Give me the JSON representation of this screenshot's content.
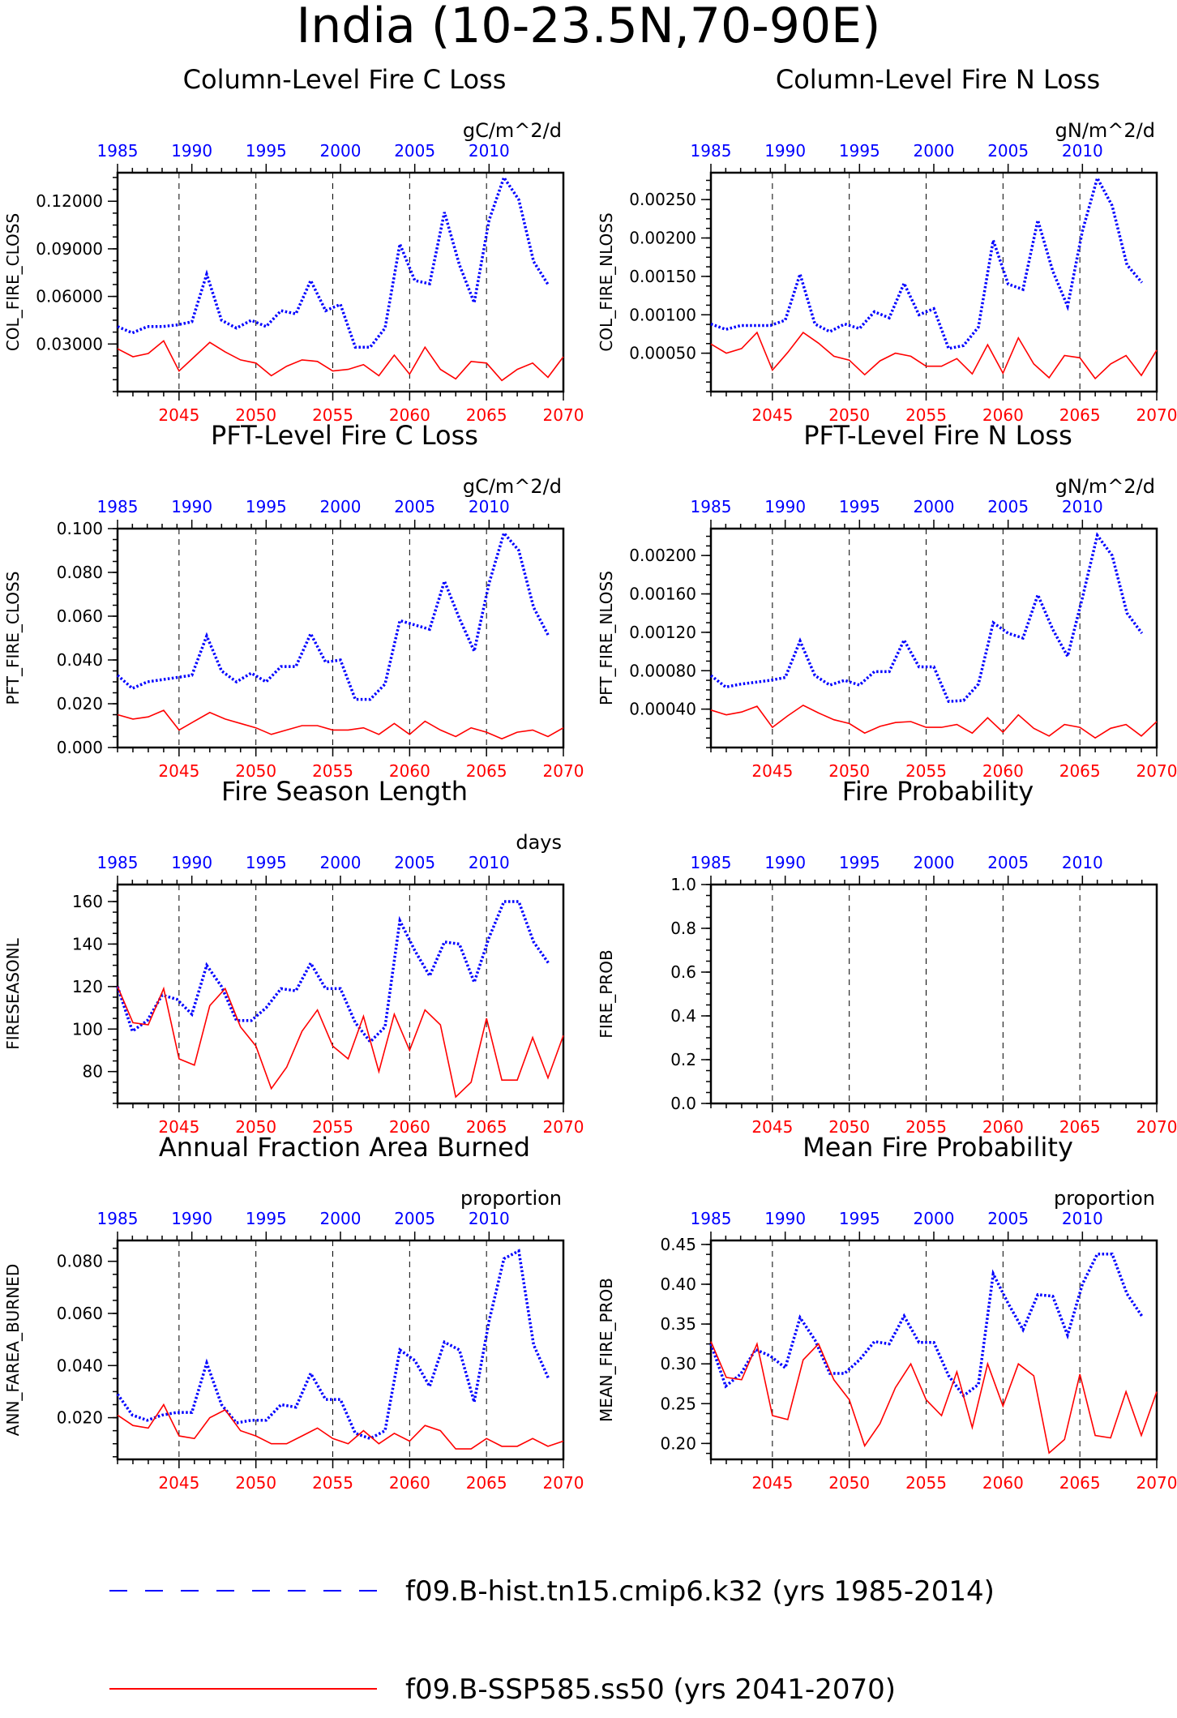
{
  "title": "India (10-23.5N,70-90E)",
  "colors": {
    "hist": "#0000ff",
    "ssp": "#ff0000",
    "axis": "#000000"
  },
  "top_axis": {
    "label_years": [
      1985,
      1990,
      1995,
      2000,
      2005,
      2010
    ],
    "range": [
      1985,
      2014
    ]
  },
  "bottom_axis": {
    "label_years": [
      2045,
      2050,
      2055,
      2060,
      2065,
      2070
    ],
    "range": [
      2041,
      2070
    ]
  },
  "legend": [
    {
      "label": "f09.B-hist.tn15.cmip6.k32 (yrs 1985-2014)",
      "style": "dashed",
      "color": "#0000ff"
    },
    {
      "label": "f09.B-SSP585.ss50 (yrs 2041-2070)",
      "style": "solid",
      "color": "#ff0000"
    }
  ],
  "chart_data": [
    {
      "type": "line",
      "title": "Column-Level Fire C Loss",
      "units": "gC/m^2/d",
      "ylabel": "COL_FIRE_CLOSS",
      "ylim": [
        0,
        0.138
      ],
      "yticks": [
        0.03,
        0.06,
        0.09,
        0.12
      ],
      "ytick_labels": [
        "0.03000",
        "0.06000",
        "0.09000",
        "0.12000"
      ],
      "series": [
        {
          "name": "f09.B-hist.tn15.cmip6.k32 (yrs 1985-2014)",
          "x_start": 1985,
          "values": [
            0.041,
            0.037,
            0.041,
            0.041,
            0.042,
            0.044,
            0.074,
            0.045,
            0.04,
            0.045,
            0.041,
            0.051,
            0.049,
            0.07,
            0.051,
            0.055,
            0.028,
            0.028,
            0.04,
            0.093,
            0.07,
            0.068,
            0.113,
            0.08,
            0.056,
            0.108,
            0.135,
            0.121,
            0.082,
            0.067
          ]
        },
        {
          "name": "f09.B-SSP585.ss50 (yrs 2041-2070)",
          "x_start": 2041,
          "values": [
            0.027,
            0.022,
            0.024,
            0.032,
            0.013,
            0.022,
            0.031,
            0.025,
            0.02,
            0.018,
            0.01,
            0.016,
            0.02,
            0.019,
            0.013,
            0.014,
            0.017,
            0.01,
            0.023,
            0.011,
            0.028,
            0.014,
            0.008,
            0.019,
            0.018,
            0.007,
            0.014,
            0.018,
            0.009,
            0.022
          ]
        }
      ]
    },
    {
      "type": "line",
      "title": "Column-Level Fire N Loss",
      "units": "gN/m^2/d",
      "ylabel": "COL_FIRE_NLOSS",
      "ylim": [
        0,
        0.00285
      ],
      "yticks": [
        0.0005,
        0.001,
        0.0015,
        0.002,
        0.0025
      ],
      "ytick_labels": [
        "0.00050",
        "0.00100",
        "0.00150",
        "0.00200",
        "0.00250"
      ],
      "series": [
        {
          "name": "f09.B-hist.tn15.cmip6.k32 (yrs 1985-2014)",
          "x_start": 1985,
          "values": [
            0.00088,
            0.00081,
            0.00086,
            0.00086,
            0.00086,
            0.00093,
            0.00153,
            0.00088,
            0.00078,
            0.00088,
            0.00082,
            0.00104,
            0.00096,
            0.00141,
            0.001,
            0.00108,
            0.00056,
            0.0006,
            0.00084,
            0.00197,
            0.0014,
            0.00133,
            0.00223,
            0.00157,
            0.00111,
            0.00209,
            0.00278,
            0.00242,
            0.00165,
            0.00142
          ]
        },
        {
          "name": "f09.B-SSP585.ss50 (yrs 2041-2070)",
          "x_start": 2041,
          "values": [
            0.00062,
            0.0005,
            0.00056,
            0.00077,
            0.00028,
            0.00051,
            0.00077,
            0.00063,
            0.00046,
            0.00041,
            0.00022,
            0.0004,
            0.0005,
            0.00046,
            0.00033,
            0.00033,
            0.00043,
            0.00023,
            0.00061,
            0.00024,
            0.0007,
            0.00036,
            0.00018,
            0.00047,
            0.00044,
            0.00017,
            0.00036,
            0.00047,
            0.00021,
            0.00054
          ]
        }
      ]
    },
    {
      "type": "line",
      "title": "PFT-Level Fire C Loss",
      "units": "gC/m^2/d",
      "ylabel": "PFT_FIRE_CLOSS",
      "ylim": [
        0,
        0.1
      ],
      "yticks": [
        0,
        0.02,
        0.04,
        0.06,
        0.08,
        0.1
      ],
      "ytick_labels": [
        "0.000",
        "0.020",
        "0.040",
        "0.060",
        "0.080",
        "0.100"
      ],
      "series": [
        {
          "name": "f09.B-hist.tn15.cmip6.k32 (yrs 1985-2014)",
          "x_start": 1985,
          "values": [
            0.033,
            0.027,
            0.03,
            0.031,
            0.032,
            0.033,
            0.051,
            0.035,
            0.03,
            0.034,
            0.03,
            0.037,
            0.037,
            0.052,
            0.039,
            0.04,
            0.022,
            0.022,
            0.029,
            0.058,
            0.056,
            0.054,
            0.076,
            0.059,
            0.044,
            0.075,
            0.098,
            0.09,
            0.064,
            0.051
          ]
        },
        {
          "name": "f09.B-SSP585.ss50 (yrs 2041-2070)",
          "x_start": 2041,
          "values": [
            0.015,
            0.013,
            0.014,
            0.017,
            0.008,
            0.012,
            0.016,
            0.013,
            0.011,
            0.009,
            0.006,
            0.008,
            0.01,
            0.01,
            0.008,
            0.008,
            0.009,
            0.006,
            0.011,
            0.006,
            0.012,
            0.008,
            0.005,
            0.009,
            0.007,
            0.004,
            0.007,
            0.008,
            0.005,
            0.009
          ]
        }
      ]
    },
    {
      "type": "line",
      "title": "PFT-Level Fire N Loss",
      "units": "gN/m^2/d",
      "ylabel": "PFT_FIRE_NLOSS",
      "ylim": [
        0,
        0.00228
      ],
      "yticks": [
        0.0004,
        0.0008,
        0.0012,
        0.0016,
        0.002
      ],
      "ytick_labels": [
        "0.00040",
        "0.00080",
        "0.00120",
        "0.00160",
        "0.00200"
      ],
      "series": [
        {
          "name": "f09.B-hist.tn15.cmip6.k32 (yrs 1985-2014)",
          "x_start": 1985,
          "values": [
            0.00075,
            0.00063,
            0.00066,
            0.00068,
            0.0007,
            0.00073,
            0.00111,
            0.00075,
            0.00065,
            0.0007,
            0.00065,
            0.00079,
            0.00079,
            0.00112,
            0.00084,
            0.00084,
            0.00048,
            0.00049,
            0.00066,
            0.0013,
            0.00119,
            0.00114,
            0.00159,
            0.00123,
            0.00095,
            0.00156,
            0.00221,
            0.002,
            0.0014,
            0.00119
          ]
        },
        {
          "name": "f09.B-SSP585.ss50 (yrs 2041-2070)",
          "x_start": 2041,
          "values": [
            0.00039,
            0.00034,
            0.00037,
            0.00043,
            0.00021,
            0.00033,
            0.00044,
            0.00036,
            0.00029,
            0.00025,
            0.00015,
            0.00022,
            0.00026,
            0.00027,
            0.00021,
            0.00021,
            0.00024,
            0.00015,
            0.00031,
            0.00016,
            0.00034,
            0.0002,
            0.00012,
            0.00024,
            0.00021,
            0.0001,
            0.0002,
            0.00024,
            0.00012,
            0.00027
          ]
        }
      ]
    },
    {
      "type": "line",
      "title": "Fire Season Length",
      "units": "days",
      "ylabel": "FIRESEASONL",
      "ylim": [
        65,
        168
      ],
      "yticks": [
        80,
        100,
        120,
        140,
        160
      ],
      "ytick_labels": [
        "80",
        "100",
        "120",
        "140",
        "160"
      ],
      "series": [
        {
          "name": "f09.B-hist.tn15.cmip6.k32 (yrs 1985-2014)",
          "x_start": 1985,
          "values": [
            120,
            99,
            104,
            116,
            114,
            107,
            130,
            120,
            104,
            104,
            110,
            119,
            118,
            131,
            119,
            119,
            103,
            94,
            101,
            151,
            137,
            125,
            141,
            140,
            122,
            143,
            160,
            160,
            141,
            131
          ]
        },
        {
          "name": "f09.B-SSP585.ss50 (yrs 2041-2070)",
          "x_start": 2041,
          "values": [
            120,
            103,
            102,
            119,
            86,
            83,
            111,
            119,
            101,
            92,
            72,
            82,
            99,
            109,
            92,
            86,
            106,
            80,
            107,
            90,
            109,
            102,
            68,
            75,
            105,
            76,
            76,
            96,
            77,
            97
          ]
        }
      ]
    },
    {
      "type": "line",
      "title": "Fire Probability",
      "units": "",
      "ylabel": "FIRE_PROB",
      "ylim": [
        0,
        1
      ],
      "yticks": [
        0,
        0.2,
        0.4,
        0.6,
        0.8,
        1
      ],
      "ytick_labels": [
        "0.0",
        "0.2",
        "0.4",
        "0.6",
        "0.8",
        "1.0"
      ],
      "series": []
    },
    {
      "type": "line",
      "title": "Annual Fraction Area Burned",
      "units": "proportion",
      "ylabel": "ANN_FAREA_BURNED",
      "ylim": [
        0.004,
        0.088
      ],
      "yticks": [
        0.02,
        0.04,
        0.06,
        0.08
      ],
      "ytick_labels": [
        "0.020",
        "0.040",
        "0.060",
        "0.080"
      ],
      "series": [
        {
          "name": "f09.B-hist.tn15.cmip6.k32 (yrs 1985-2014)",
          "x_start": 1985,
          "values": [
            0.029,
            0.021,
            0.019,
            0.021,
            0.022,
            0.022,
            0.041,
            0.025,
            0.018,
            0.019,
            0.019,
            0.025,
            0.024,
            0.037,
            0.027,
            0.027,
            0.014,
            0.012,
            0.015,
            0.046,
            0.042,
            0.032,
            0.049,
            0.046,
            0.026,
            0.057,
            0.081,
            0.084,
            0.048,
            0.035
          ]
        },
        {
          "name": "f09.B-SSP585.ss50 (yrs 2041-2070)",
          "x_start": 2041,
          "values": [
            0.021,
            0.017,
            0.016,
            0.025,
            0.013,
            0.012,
            0.02,
            0.023,
            0.015,
            0.013,
            0.01,
            0.01,
            0.013,
            0.016,
            0.012,
            0.01,
            0.015,
            0.01,
            0.014,
            0.011,
            0.017,
            0.015,
            0.008,
            0.008,
            0.012,
            0.009,
            0.009,
            0.012,
            0.009,
            0.011
          ]
        }
      ]
    },
    {
      "type": "line",
      "title": "Mean Fire Probability",
      "units": "proportion",
      "ylabel": "MEAN_FIRE_PROB",
      "ylim": [
        0.18,
        0.455
      ],
      "yticks": [
        0.2,
        0.25,
        0.3,
        0.35,
        0.4,
        0.45
      ],
      "ytick_labels": [
        "0.20",
        "0.25",
        "0.30",
        "0.35",
        "0.40",
        "0.45"
      ],
      "series": [
        {
          "name": "f09.B-hist.tn15.cmip6.k32 (yrs 1985-2014)",
          "x_start": 1985,
          "values": [
            0.325,
            0.272,
            0.287,
            0.318,
            0.31,
            0.295,
            0.358,
            0.33,
            0.288,
            0.288,
            0.305,
            0.328,
            0.325,
            0.36,
            0.327,
            0.327,
            0.285,
            0.26,
            0.274,
            0.413,
            0.376,
            0.343,
            0.387,
            0.385,
            0.336,
            0.4,
            0.438,
            0.438,
            0.388,
            0.36
          ]
        },
        {
          "name": "f09.B-SSP585.ss50 (yrs 2041-2070)",
          "x_start": 2041,
          "values": [
            0.328,
            0.283,
            0.28,
            0.325,
            0.235,
            0.23,
            0.305,
            0.325,
            0.28,
            0.255,
            0.197,
            0.225,
            0.27,
            0.3,
            0.255,
            0.235,
            0.29,
            0.22,
            0.3,
            0.247,
            0.3,
            0.285,
            0.188,
            0.205,
            0.287,
            0.21,
            0.207,
            0.265,
            0.21,
            0.265
          ]
        }
      ]
    }
  ]
}
